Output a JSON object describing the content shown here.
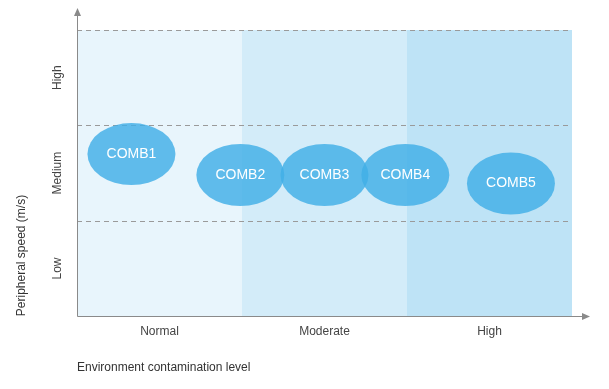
{
  "chart_data": {
    "type": "scatter",
    "x_label": "Environment contamination level",
    "y_label": "Peripheral speed (m/s)",
    "xlim": [
      0,
      3
    ],
    "ylim": [
      0,
      3
    ],
    "xticks": [
      {
        "value": 0.5,
        "label": "Normal"
      },
      {
        "value": 1.5,
        "label": "Moderate"
      },
      {
        "value": 2.5,
        "label": "High"
      }
    ],
    "yticks": [
      {
        "value": 0.5,
        "label": "Low"
      },
      {
        "value": 1.5,
        "label": "Medium"
      },
      {
        "value": 2.5,
        "label": "High"
      }
    ],
    "grid": true,
    "color": "#41afe6",
    "marker": "ellipse",
    "points": [
      {
        "label": "COMB1",
        "x": 0.33,
        "y": 1.7
      },
      {
        "label": "COMB2",
        "x": 0.99,
        "y": 1.48
      },
      {
        "label": "COMB3",
        "x": 1.5,
        "y": 1.48
      },
      {
        "label": "COMB4",
        "x": 1.99,
        "y": 1.48
      },
      {
        "label": "COMB5",
        "x": 2.63,
        "y": 1.39
      }
    ]
  }
}
